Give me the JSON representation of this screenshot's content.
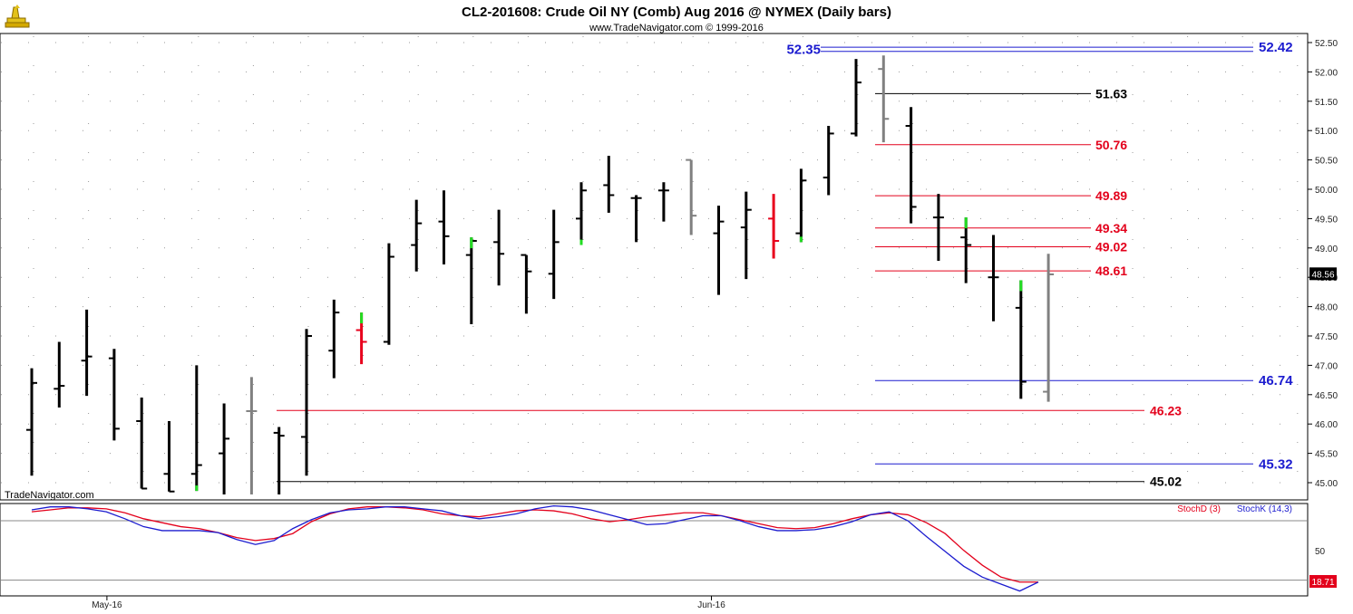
{
  "title": "CL2-201608:  Crude Oil NY (Comb) Aug 2016 @ NYMEX  (Daily bars)",
  "subtitle": "www.TradeNavigator.com © 1999-2016",
  "watermark": "TradeNavigator.com",
  "colors": {
    "up": "#000000",
    "down_gray": "#808080",
    "red_bar": "#e8001c",
    "green_tick": "#22dd22",
    "blue_line": "#1c1ccf",
    "red_line": "#e3001b",
    "black_line": "#000000",
    "grid": "#999999",
    "stochD": "#e3001b",
    "stochK": "#1c1ccf"
  },
  "chart_data": [
    {
      "type": "ohlc",
      "name": "price",
      "ylim": [
        44.8,
        52.6
      ],
      "y_ticks": [
        "52.50",
        "52.00",
        "51.50",
        "51.00",
        "50.50",
        "50.00",
        "49.50",
        "49.00",
        "48.50",
        "48.00",
        "47.50",
        "47.00",
        "46.50",
        "46.00",
        "45.50",
        "45.00"
      ],
      "y_tick_values": [
        52.5,
        52.0,
        51.5,
        51.0,
        50.5,
        50.0,
        49.5,
        49.0,
        48.5,
        48.0,
        47.5,
        47.0,
        46.5,
        46.0,
        45.5,
        45.0
      ],
      "x_labels": [
        {
          "label": "May-16",
          "index": 3
        },
        {
          "label": "Jun-16",
          "index": 25
        }
      ],
      "last_price": "48.56",
      "last_value": 48.56,
      "bars": [
        {
          "o": 45.9,
          "h": 46.95,
          "l": 45.12,
          "c": 46.7,
          "color": "black"
        },
        {
          "o": 46.6,
          "h": 47.4,
          "l": 46.28,
          "c": 46.65,
          "color": "black"
        },
        {
          "o": 47.08,
          "h": 47.95,
          "l": 46.48,
          "c": 47.15,
          "color": "black"
        },
        {
          "o": 47.12,
          "h": 47.28,
          "l": 45.72,
          "c": 45.92,
          "color": "black"
        },
        {
          "o": 46.05,
          "h": 46.45,
          "l": 44.9,
          "c": 44.9,
          "color": "black"
        },
        {
          "o": 45.15,
          "h": 46.05,
          "l": 44.85,
          "c": 44.85,
          "color": "black"
        },
        {
          "o": 45.15,
          "h": 47.0,
          "l": 44.86,
          "c": 45.3,
          "color": "black",
          "accent": "green_low"
        },
        {
          "o": 45.5,
          "h": 46.35,
          "l": 44.8,
          "c": 45.75,
          "color": "black"
        },
        {
          "o": 46.22,
          "h": 46.8,
          "l": 44.8,
          "c": 46.22,
          "color": "gray"
        },
        {
          "o": 45.85,
          "h": 45.95,
          "l": 44.8,
          "c": 45.8,
          "color": "black"
        },
        {
          "o": 45.78,
          "h": 47.62,
          "l": 45.12,
          "c": 47.5,
          "color": "black"
        },
        {
          "o": 47.25,
          "h": 48.12,
          "l": 46.78,
          "c": 47.9,
          "color": "black"
        },
        {
          "o": 47.6,
          "h": 47.9,
          "l": 47.02,
          "c": 47.4,
          "color": "red",
          "accent": "green_high"
        },
        {
          "o": 47.4,
          "h": 49.08,
          "l": 47.35,
          "c": 48.85,
          "color": "black"
        },
        {
          "o": 49.05,
          "h": 49.82,
          "l": 48.6,
          "c": 49.42,
          "color": "black"
        },
        {
          "o": 49.45,
          "h": 49.98,
          "l": 48.72,
          "c": 49.2,
          "color": "black"
        },
        {
          "o": 48.88,
          "h": 49.18,
          "l": 47.7,
          "c": 49.12,
          "color": "black",
          "accent": "green_high"
        },
        {
          "o": 49.1,
          "h": 49.65,
          "l": 48.36,
          "c": 48.9,
          "color": "black"
        },
        {
          "o": 48.88,
          "h": 48.88,
          "l": 47.88,
          "c": 48.6,
          "color": "black"
        },
        {
          "o": 48.56,
          "h": 49.65,
          "l": 48.13,
          "c": 49.1,
          "color": "black"
        },
        {
          "o": 49.5,
          "h": 50.12,
          "l": 49.05,
          "c": 49.98,
          "color": "black",
          "accent": "green_low"
        },
        {
          "o": 50.07,
          "h": 50.57,
          "l": 49.6,
          "c": 49.9,
          "color": "black"
        },
        {
          "o": 49.85,
          "h": 49.9,
          "l": 49.1,
          "c": 49.85,
          "color": "black"
        },
        {
          "o": 49.98,
          "h": 50.12,
          "l": 49.45,
          "c": 49.98,
          "color": "black"
        },
        {
          "o": 50.5,
          "h": 50.5,
          "l": 49.22,
          "c": 49.55,
          "color": "gray"
        },
        {
          "o": 49.25,
          "h": 49.72,
          "l": 48.2,
          "c": 49.45,
          "color": "black"
        },
        {
          "o": 49.35,
          "h": 49.96,
          "l": 48.47,
          "c": 49.65,
          "color": "black"
        },
        {
          "o": 49.5,
          "h": 49.92,
          "l": 48.82,
          "c": 49.12,
          "color": "red"
        },
        {
          "o": 49.25,
          "h": 50.35,
          "l": 49.1,
          "c": 50.15,
          "color": "black",
          "accent": "green_low"
        },
        {
          "o": 50.2,
          "h": 51.08,
          "l": 49.9,
          "c": 50.95,
          "color": "black"
        },
        {
          "o": 50.95,
          "h": 52.22,
          "l": 50.9,
          "c": 51.82,
          "color": "black"
        },
        {
          "o": 52.05,
          "h": 52.28,
          "l": 50.8,
          "c": 51.2,
          "color": "gray"
        },
        {
          "o": 51.08,
          "h": 51.4,
          "l": 49.42,
          "c": 49.7,
          "color": "black"
        },
        {
          "o": 49.52,
          "h": 49.92,
          "l": 48.78,
          "c": 49.52,
          "color": "black"
        },
        {
          "o": 49.18,
          "h": 49.52,
          "l": 48.4,
          "c": 49.05,
          "color": "black",
          "accent": "green_high"
        },
        {
          "o": 48.5,
          "h": 49.22,
          "l": 47.75,
          "c": 48.5,
          "color": "black"
        },
        {
          "o": 47.98,
          "h": 48.45,
          "l": 46.43,
          "c": 46.72,
          "color": "black",
          "accent": "green_high"
        },
        {
          "o": 46.55,
          "h": 48.9,
          "l": 46.38,
          "c": 48.55,
          "color": "gray"
        }
      ],
      "levels": [
        {
          "value": 52.42,
          "label": "52.42",
          "color": "blue"
        },
        {
          "value": 52.35,
          "label": "52.35",
          "color": "blue"
        },
        {
          "value": 51.63,
          "label": "51.63",
          "color": "black"
        },
        {
          "value": 50.76,
          "label": "50.76",
          "color": "red"
        },
        {
          "value": 49.89,
          "label": "49.89",
          "color": "red"
        },
        {
          "value": 49.34,
          "label": "49.34",
          "color": "red"
        },
        {
          "value": 49.02,
          "label": "49.02",
          "color": "red"
        },
        {
          "value": 48.61,
          "label": "48.61",
          "color": "red"
        },
        {
          "value": 46.74,
          "label": "46.74",
          "color": "blue"
        },
        {
          "value": 46.23,
          "label": "46.23",
          "color": "red"
        },
        {
          "value": 45.32,
          "label": "45.32",
          "color": "blue"
        },
        {
          "value": 45.02,
          "label": "45.02",
          "color": "black"
        }
      ]
    },
    {
      "type": "line",
      "name": "stochastic",
      "ylim": [
        0,
        100
      ],
      "y_ticks": [
        "50"
      ],
      "y_tick_values": [
        50
      ],
      "reference_lines": [
        80,
        20
      ],
      "last_value_label": "18.71",
      "last_value": 18.71,
      "legend": [
        "StochD (3)",
        "StochK (14,3)"
      ],
      "series": [
        {
          "name": "StochD (3)",
          "values": [
            89,
            91,
            93,
            93,
            92,
            88,
            82,
            78,
            74,
            72,
            68,
            63,
            60,
            62,
            67,
            79,
            87,
            92,
            94,
            94,
            93,
            91,
            87,
            85,
            84,
            87,
            90,
            91,
            90,
            87,
            82,
            79,
            81,
            84,
            86,
            88,
            88,
            85,
            81,
            77,
            73,
            72,
            73,
            77,
            82,
            86,
            88,
            86,
            78,
            67,
            50,
            35,
            23,
            18,
            18
          ]
        },
        {
          "name": "StochK (14,3)",
          "values": [
            91,
            94,
            94,
            92,
            89,
            82,
            74,
            70,
            70,
            70,
            68,
            61,
            56,
            60,
            72,
            81,
            88,
            91,
            92,
            94,
            94,
            92,
            90,
            85,
            82,
            84,
            87,
            92,
            95,
            94,
            91,
            86,
            81,
            76,
            77,
            81,
            85,
            85,
            80,
            74,
            70,
            70,
            71,
            74,
            79,
            86,
            89,
            80,
            64,
            49,
            34,
            23,
            16,
            9,
            18
          ]
        }
      ]
    }
  ]
}
